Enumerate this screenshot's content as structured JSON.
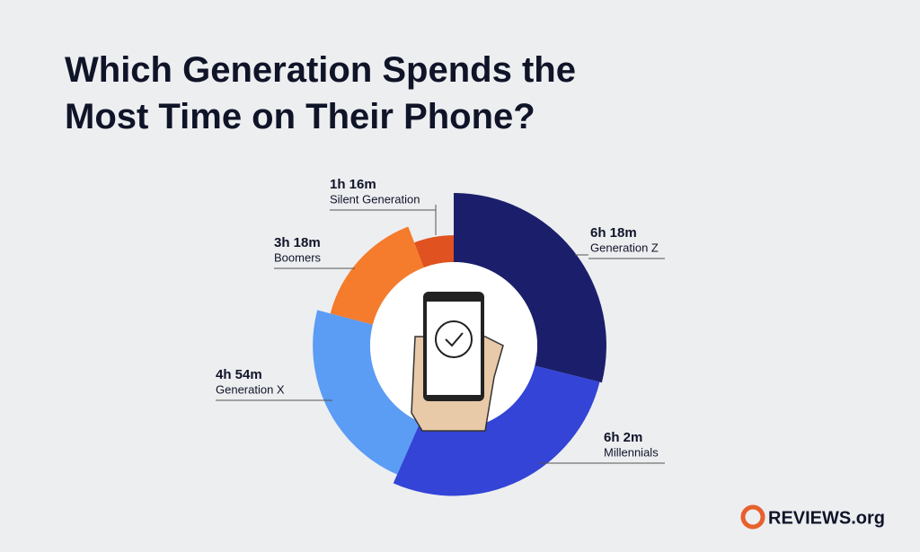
{
  "chart_data": {
    "type": "rose-donut",
    "title": "Which Generation Spends the Most Time on Their Phone?",
    "categories": [
      "Generation Z",
      "Millennials",
      "Generation X",
      "Boomers",
      "Silent Generation"
    ],
    "values": [
      378,
      362,
      294,
      198,
      76
    ],
    "value_labels": [
      "6h 18m",
      "6h 2m",
      "4h 54m",
      "3h 18m",
      "1h 16m"
    ],
    "colors": [
      "#1b1f6b",
      "#3344d6",
      "#5b9cf5",
      "#f47c2c",
      "#e0521f"
    ],
    "brand": "REVIEWS.org"
  }
}
